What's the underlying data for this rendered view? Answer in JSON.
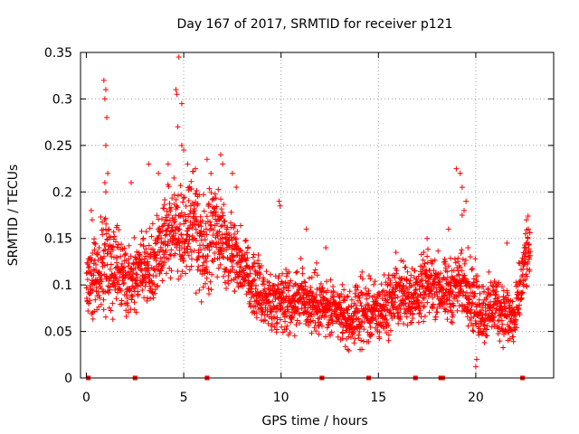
{
  "chart_data": {
    "type": "scatter",
    "title": "Day 167 of 2017, SRMTID for receiver p121",
    "xlabel": "GPS time / hours",
    "ylabel": "SRMTID / TECUs",
    "xlim": [
      -0.3,
      24
    ],
    "ylim": [
      0,
      0.35
    ],
    "xticks": [
      0,
      5,
      10,
      15,
      20
    ],
    "xtick_labels": [
      "0",
      "5",
      "10",
      "15",
      "20"
    ],
    "yticks": [
      0,
      0.05,
      0.1,
      0.15,
      0.2,
      0.25,
      0.3,
      0.35
    ],
    "ytick_labels": [
      "0",
      "0.05",
      "0.1",
      "0.15",
      "0.2",
      "0.25",
      "0.3",
      "0.35"
    ],
    "grid": true,
    "marker": "+",
    "color": "#ff0000",
    "zero_markers_x": [
      0.1,
      2.5,
      6.2,
      12.1,
      14.5,
      16.9,
      18.2,
      18.3,
      22.4
    ],
    "trend": {
      "x": [
        0,
        0.5,
        1,
        1.5,
        2,
        2.5,
        3,
        3.5,
        4,
        4.5,
        5,
        5.5,
        6,
        6.5,
        7,
        7.5,
        8,
        8.5,
        9,
        9.5,
        10,
        10.5,
        11,
        11.5,
        12,
        12.5,
        13,
        13.5,
        14,
        14.5,
        15,
        15.5,
        16,
        16.5,
        17,
        17.5,
        18,
        18.5,
        19,
        19.5,
        20,
        20.5,
        21,
        21.5,
        22,
        22.5,
        22.8
      ],
      "y": [
        0.1,
        0.11,
        0.13,
        0.12,
        0.11,
        0.11,
        0.12,
        0.12,
        0.15,
        0.16,
        0.16,
        0.17,
        0.13,
        0.16,
        0.15,
        0.14,
        0.12,
        0.1,
        0.09,
        0.08,
        0.09,
        0.08,
        0.09,
        0.08,
        0.08,
        0.07,
        0.07,
        0.06,
        0.07,
        0.07,
        0.07,
        0.08,
        0.09,
        0.09,
        0.09,
        0.1,
        0.1,
        0.09,
        0.1,
        0.1,
        0.08,
        0.07,
        0.08,
        0.07,
        0.06,
        0.12,
        0.14
      ],
      "spread": [
        0.03,
        0.04,
        0.05,
        0.04,
        0.04,
        0.03,
        0.03,
        0.04,
        0.04,
        0.04,
        0.05,
        0.05,
        0.05,
        0.04,
        0.04,
        0.04,
        0.03,
        0.03,
        0.03,
        0.03,
        0.03,
        0.03,
        0.03,
        0.03,
        0.03,
        0.025,
        0.025,
        0.025,
        0.03,
        0.03,
        0.03,
        0.03,
        0.03,
        0.03,
        0.03,
        0.03,
        0.03,
        0.03,
        0.03,
        0.03,
        0.035,
        0.03,
        0.03,
        0.03,
        0.03,
        0.03,
        0.03
      ]
    },
    "spikes": [
      {
        "x": 0.25,
        "y": 0.18
      },
      {
        "x": 0.3,
        "y": 0.17
      },
      {
        "x": 0.9,
        "y": 0.32
      },
      {
        "x": 0.95,
        "y": 0.3
      },
      {
        "x": 1.0,
        "y": 0.31
      },
      {
        "x": 1.05,
        "y": 0.28
      },
      {
        "x": 1.0,
        "y": 0.25
      },
      {
        "x": 1.1,
        "y": 0.22
      },
      {
        "x": 1.0,
        "y": 0.2
      },
      {
        "x": 0.95,
        "y": 0.21
      },
      {
        "x": 2.3,
        "y": 0.21
      },
      {
        "x": 3.2,
        "y": 0.23
      },
      {
        "x": 3.7,
        "y": 0.22
      },
      {
        "x": 4.2,
        "y": 0.23
      },
      {
        "x": 4.5,
        "y": 0.215
      },
      {
        "x": 4.6,
        "y": 0.31
      },
      {
        "x": 4.65,
        "y": 0.305
      },
      {
        "x": 4.7,
        "y": 0.27
      },
      {
        "x": 4.75,
        "y": 0.345
      },
      {
        "x": 4.9,
        "y": 0.295
      },
      {
        "x": 4.9,
        "y": 0.25
      },
      {
        "x": 5.0,
        "y": 0.245
      },
      {
        "x": 5.2,
        "y": 0.23
      },
      {
        "x": 5.6,
        "y": 0.225
      },
      {
        "x": 6.2,
        "y": 0.235
      },
      {
        "x": 6.4,
        "y": 0.22
      },
      {
        "x": 6.9,
        "y": 0.24
      },
      {
        "x": 7.0,
        "y": 0.23
      },
      {
        "x": 7.5,
        "y": 0.22
      },
      {
        "x": 7.7,
        "y": 0.205
      },
      {
        "x": 9.9,
        "y": 0.19
      },
      {
        "x": 9.95,
        "y": 0.185
      },
      {
        "x": 11.3,
        "y": 0.16
      },
      {
        "x": 17.5,
        "y": 0.15
      },
      {
        "x": 19.0,
        "y": 0.225
      },
      {
        "x": 19.2,
        "y": 0.22
      },
      {
        "x": 19.3,
        "y": 0.205
      },
      {
        "x": 19.4,
        "y": 0.18
      },
      {
        "x": 19.3,
        "y": 0.175
      },
      {
        "x": 19.5,
        "y": 0.19
      },
      {
        "x": 19.6,
        "y": 0.14
      },
      {
        "x": 22.6,
        "y": 0.17
      },
      {
        "x": 22.7,
        "y": 0.16
      },
      {
        "x": 22.55,
        "y": 0.155
      },
      {
        "x": 15.9,
        "y": 0.135
      },
      {
        "x": 18.6,
        "y": 0.16
      },
      {
        "x": 20.0,
        "y": 0.012
      },
      {
        "x": 20.05,
        "y": 0.02
      },
      {
        "x": 21.6,
        "y": 0.145
      },
      {
        "x": 12.3,
        "y": 0.14
      }
    ]
  }
}
